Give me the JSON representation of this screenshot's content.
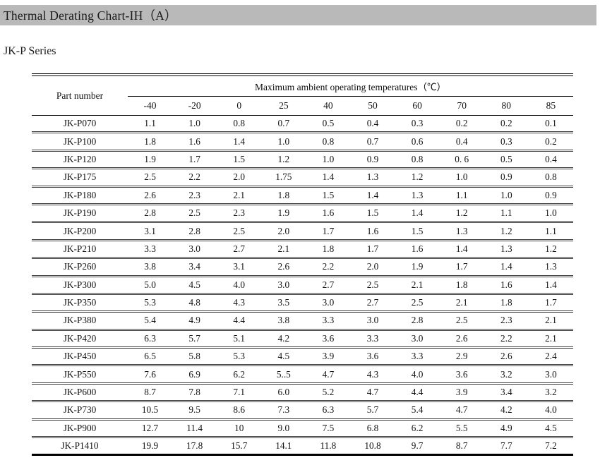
{
  "page": {
    "title": "Thermal Derating Chart-IH（A）",
    "subtitle": "JK-P Series"
  },
  "table": {
    "part_number_header": "Part number",
    "temp_group_header": "Maximum ambient operating temperatures（℃）",
    "temperatures": [
      "-40",
      "-20",
      "0",
      "25",
      "40",
      "50",
      "60",
      "70",
      "80",
      "85"
    ],
    "rows": [
      {
        "part": "JK-P070",
        "values": [
          "1.1",
          "1.0",
          "0.8",
          "0.7",
          "0.5",
          "0.4",
          "0.3",
          "0.2",
          "0.2",
          "0.1"
        ]
      },
      {
        "part": "JK-P100",
        "values": [
          "1.8",
          "1.6",
          "1.4",
          "1.0",
          "0.8",
          "0.7",
          "0.6",
          "0.4",
          "0.3",
          "0.2"
        ]
      },
      {
        "part": "JK-P120",
        "values": [
          "1.9",
          "1.7",
          "1.5",
          "1.2",
          "1.0",
          "0.9",
          "0.8",
          "0. 6",
          "0.5",
          "0.4"
        ]
      },
      {
        "part": "JK-P175",
        "values": [
          "2.5",
          "2.2",
          "2.0",
          "1.75",
          "1.4",
          "1.3",
          "1.2",
          "1.0",
          "0.9",
          "0.8"
        ]
      },
      {
        "part": "JK-P180",
        "values": [
          "2.6",
          "2.3",
          "2.1",
          "1.8",
          "1.5",
          "1.4",
          "1.3",
          "1.1",
          "1.0",
          "0.9"
        ]
      },
      {
        "part": "JK-P190",
        "values": [
          "2.8",
          "2.5",
          "2.3",
          "1.9",
          "1.6",
          "1.5",
          "1.4",
          "1.2",
          "1.1",
          "1.0"
        ]
      },
      {
        "part": "JK-P200",
        "values": [
          "3.1",
          "2.8",
          "2.5",
          "2.0",
          "1.7",
          "1.6",
          "1.5",
          "1.3",
          "1.2",
          "1.1"
        ]
      },
      {
        "part": "JK-P210",
        "values": [
          "3.3",
          "3.0",
          "2.7",
          "2.1",
          "1.8",
          "1.7",
          "1.6",
          "1.4",
          "1.3",
          "1.2"
        ]
      },
      {
        "part": "JK-P260",
        "values": [
          "3.8",
          "3.4",
          "3.1",
          "2.6",
          "2.2",
          "2.0",
          "1.9",
          "1.7",
          "1.4",
          "1.3"
        ]
      },
      {
        "part": "JK-P300",
        "values": [
          "5.0",
          "4.5",
          "4.0",
          "3.0",
          "2.7",
          "2.5",
          "2.1",
          "1.8",
          "1.6",
          "1.4"
        ]
      },
      {
        "part": "JK-P350",
        "values": [
          "5.3",
          "4.8",
          "4.3",
          "3.5",
          "3.0",
          "2.7",
          "2.5",
          "2.1",
          "1.8",
          "1.7"
        ]
      },
      {
        "part": "JK-P380",
        "values": [
          "5.4",
          "4.9",
          "4.4",
          "3.8",
          "3.3",
          "3.0",
          "2.8",
          "2.5",
          "2.3",
          "2.1"
        ]
      },
      {
        "part": "JK-P420",
        "values": [
          "6.3",
          "5.7",
          "5.1",
          "4.2",
          "3.6",
          "3.3",
          "3.0",
          "2.6",
          "2.2",
          "2.1"
        ]
      },
      {
        "part": "JK-P450",
        "values": [
          "6.5",
          "5.8",
          "5.3",
          "4.5",
          "3.9",
          "3.6",
          "3.3",
          "2.9",
          "2.6",
          "2.4"
        ]
      },
      {
        "part": "JK-P550",
        "values": [
          "7.6",
          "6.9",
          "6.2",
          "5..5",
          "4.7",
          "4.3",
          "4.0",
          "3.6",
          "3.2",
          "3.0"
        ]
      },
      {
        "part": "JK-P600",
        "values": [
          "8.7",
          "7.8",
          "7.1",
          "6.0",
          "5.2",
          "4.7",
          "4.4",
          "3.9",
          "3.4",
          "3.2"
        ]
      },
      {
        "part": "JK-P730",
        "values": [
          "10.5",
          "9.5",
          "8.6",
          "7.3",
          "6.3",
          "5.7",
          "5.4",
          "4.7",
          "4.2",
          "4.0"
        ]
      },
      {
        "part": "JK-P900",
        "values": [
          "12.7",
          "11.4",
          "10",
          "9.0",
          "7.5",
          "6.8",
          "6.2",
          "5.5",
          "4.9",
          "4.5"
        ]
      },
      {
        "part": "JK-P1410",
        "values": [
          "19.9",
          "17.8",
          "15.7",
          "14.1",
          "11.8",
          "10.8",
          "9.7",
          "8.7",
          "7.7",
          "7.2"
        ]
      }
    ]
  }
}
